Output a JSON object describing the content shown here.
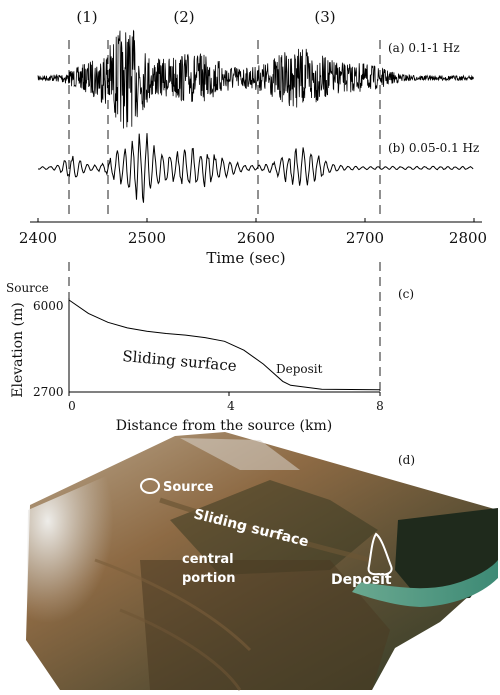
{
  "phase_labels": [
    "(1)",
    "(2)",
    "(3)"
  ],
  "panel_a": {
    "label": "(a) 0.1-1 Hz"
  },
  "panel_b": {
    "label": "(b) 0.05-0.1 Hz"
  },
  "panel_c": {
    "label": "(c)"
  },
  "panel_d": {
    "label": "(d)"
  },
  "chart_data": [
    {
      "type": "line",
      "title": "",
      "xlabel": "Time (sec)",
      "ylabel": "",
      "xlim": [
        2400,
        2800
      ],
      "xticks": [
        "2400",
        "2500",
        "2600",
        "2700",
        "2800"
      ],
      "phase_boundaries_sec": [
        2430,
        2465,
        2605,
        2720
      ],
      "series": [
        {
          "name": "(a) 0.1-1 Hz",
          "envelope": "high-frequency burst, peaks near 2480 s and 2640 s"
        },
        {
          "name": "(b) 0.05-0.1 Hz",
          "envelope": "long-period pulses, strongest 2470-2530 s"
        }
      ]
    },
    {
      "type": "line",
      "title": "",
      "xlabel": "Distance from the source (km)",
      "ylabel": "Elevation (m)",
      "xlim": [
        0,
        8
      ],
      "ylim": [
        2700,
        6000
      ],
      "xticks": [
        "0",
        "4",
        "8"
      ],
      "yticks": [
        "2700",
        "6000"
      ],
      "source_label": "Source",
      "series": [
        {
          "name": "Sliding surface",
          "x": [
            0,
            0.5,
            1.0,
            1.5,
            2.0,
            2.5,
            3.0,
            3.5,
            4.0,
            4.5,
            5.0,
            5.5,
            5.7,
            6.5,
            8.0
          ],
          "y": [
            6000,
            5520,
            5200,
            5000,
            4880,
            4800,
            4740,
            4650,
            4520,
            4200,
            3700,
            3080,
            2940,
            2800,
            2780
          ]
        }
      ],
      "annotations": [
        "Sliding surface",
        "Deposit"
      ]
    }
  ],
  "map": {
    "source_label": "Source",
    "sliding_label": "Sliding surface",
    "central_label_1": "central",
    "central_label_2": "portion",
    "deposit_label": "Deposit"
  }
}
